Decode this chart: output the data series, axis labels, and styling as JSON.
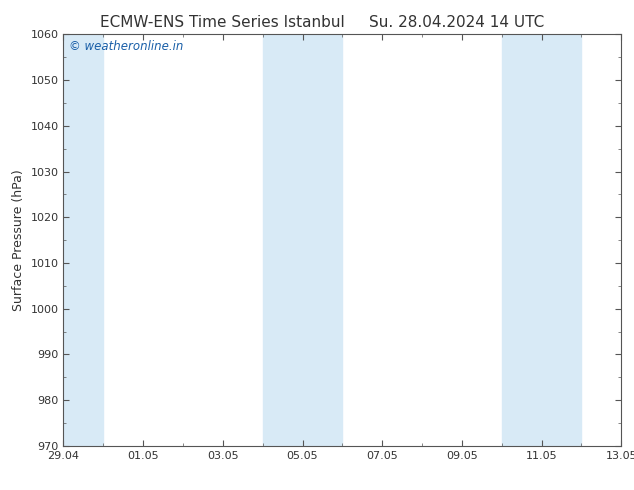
{
  "title_left": "ECMW-ENS Time Series Istanbul",
  "title_right": "Su. 28.04.2024 14 UTC",
  "ylabel": "Surface Pressure (hPa)",
  "ylim": [
    970,
    1060
  ],
  "yticks": [
    970,
    980,
    990,
    1000,
    1010,
    1020,
    1030,
    1040,
    1050,
    1060
  ],
  "xtick_labels": [
    "29.04",
    "01.05",
    "03.05",
    "05.05",
    "07.05",
    "09.05",
    "11.05",
    "13.05"
  ],
  "xtick_positions": [
    0,
    2,
    4,
    6,
    8,
    10,
    12,
    14
  ],
  "shaded_bands": [
    {
      "x_start": -0.01,
      "x_end": 1.0
    },
    {
      "x_start": 5.0,
      "x_end": 7.0
    },
    {
      "x_start": 11.0,
      "x_end": 13.0
    }
  ],
  "shaded_band_color": "#d8eaf6",
  "plot_bg_color": "#ffffff",
  "fig_bg_color": "#ffffff",
  "watermark_text": "© weatheronline.in",
  "watermark_color": "#1a5fa8",
  "border_color": "#555555",
  "tick_color": "#333333",
  "title_color": "#333333",
  "title_fontsize": 11,
  "ylabel_fontsize": 9,
  "tick_fontsize": 8,
  "watermark_fontsize": 8.5,
  "x_start": 0,
  "x_end": 14
}
